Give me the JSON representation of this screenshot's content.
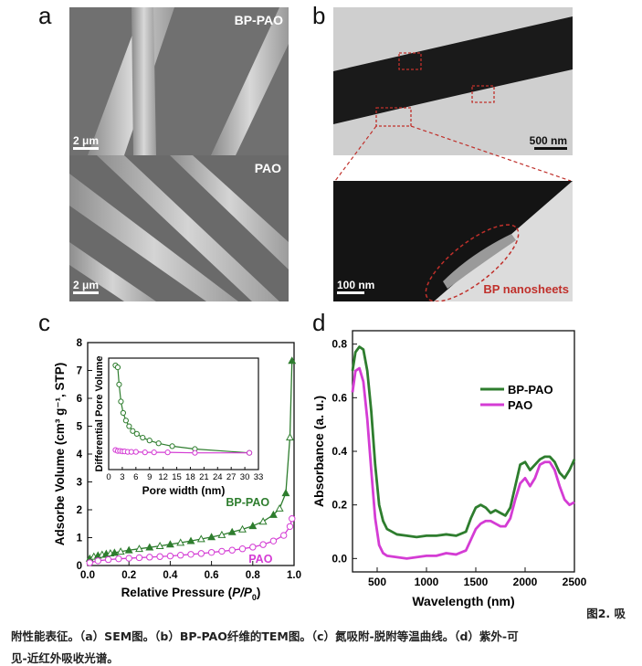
{
  "panels": {
    "a": {
      "letter": "a",
      "top_label": "BP-PAO",
      "bottom_label": "PAO",
      "scale_top": "2 μm",
      "scale_bottom": "2 μm"
    },
    "b": {
      "letter": "b",
      "scale_top": "500 nm",
      "scale_bottom": "100 nm",
      "annotation": "BP nanosheets"
    },
    "c": {
      "letter": "c"
    },
    "d": {
      "letter": "d"
    }
  },
  "chart_data": [
    {
      "id": "c-main",
      "type": "line",
      "xlabel_parts": [
        "Relative Pressure (",
        "P/P",
        "0",
        ")"
      ],
      "ylabel": "Adsorbe Volume (cm³ g⁻¹, STP)",
      "xlim": [
        0,
        1
      ],
      "ylim": [
        0,
        8
      ],
      "xticks": [
        "0.0",
        "0.2",
        "0.4",
        "0.6",
        "0.8",
        "1.0"
      ],
      "yticks": [
        "0",
        "1",
        "2",
        "3",
        "4",
        "5",
        "6",
        "7",
        "8"
      ],
      "series": [
        {
          "name": "BP-PAO",
          "color": "#2e7d2e",
          "x": [
            0.01,
            0.03,
            0.05,
            0.07,
            0.09,
            0.11,
            0.13,
            0.16,
            0.2,
            0.25,
            0.3,
            0.35,
            0.4,
            0.45,
            0.5,
            0.55,
            0.6,
            0.65,
            0.7,
            0.75,
            0.8,
            0.85,
            0.9,
            0.93,
            0.96,
            0.98,
            0.99
          ],
          "y": [
            0.25,
            0.32,
            0.36,
            0.39,
            0.42,
            0.44,
            0.46,
            0.5,
            0.55,
            0.6,
            0.65,
            0.7,
            0.76,
            0.82,
            0.88,
            0.95,
            1.02,
            1.1,
            1.2,
            1.3,
            1.42,
            1.58,
            1.82,
            2.05,
            2.6,
            4.6,
            7.35
          ]
        },
        {
          "name": "PAO",
          "color": "#d43cd4",
          "x": [
            0.01,
            0.05,
            0.1,
            0.15,
            0.2,
            0.25,
            0.3,
            0.35,
            0.4,
            0.45,
            0.5,
            0.55,
            0.6,
            0.65,
            0.7,
            0.75,
            0.8,
            0.85,
            0.9,
            0.95,
            0.98,
            0.99
          ],
          "y": [
            0.1,
            0.17,
            0.21,
            0.24,
            0.26,
            0.28,
            0.3,
            0.32,
            0.34,
            0.37,
            0.4,
            0.43,
            0.47,
            0.51,
            0.55,
            0.6,
            0.66,
            0.75,
            0.88,
            1.08,
            1.4,
            1.68
          ]
        }
      ],
      "legend_labels": [
        "BP-PAO",
        "PAO"
      ]
    },
    {
      "id": "c-inset",
      "type": "line",
      "xlabel": "Pore width (nm)",
      "ylabel": "Differential Pore Volume",
      "xlim": [
        0,
        33
      ],
      "xticks": [
        "0",
        "3",
        "6",
        "9",
        "12",
        "15",
        "18",
        "21",
        "24",
        "27",
        "30",
        "33"
      ],
      "series": [
        {
          "name": "BP-PAO",
          "color": "#2e7d2e",
          "x": [
            1.5,
            2,
            2.3,
            2.7,
            3.2,
            3.8,
            4.5,
            5.3,
            6.2,
            7.5,
            9,
            11,
            14,
            19,
            31
          ],
          "y": [
            1.0,
            0.98,
            0.8,
            0.62,
            0.5,
            0.42,
            0.36,
            0.31,
            0.28,
            0.24,
            0.21,
            0.18,
            0.15,
            0.12,
            0.08
          ]
        },
        {
          "name": "PAO",
          "color": "#d43cd4",
          "x": [
            1.5,
            2,
            2.5,
            3,
            3.5,
            4.2,
            5,
            6,
            8,
            10,
            13,
            19,
            31
          ],
          "y": [
            0.11,
            0.1,
            0.1,
            0.095,
            0.095,
            0.09,
            0.09,
            0.09,
            0.085,
            0.085,
            0.085,
            0.08,
            0.08
          ]
        }
      ]
    },
    {
      "id": "d-main",
      "type": "line",
      "xlabel": "Wavelength (nm)",
      "ylabel": "Absorbance (a. u.)",
      "xlim": [
        250,
        2500
      ],
      "ylim": [
        -0.05,
        0.85
      ],
      "xticks": [
        "500",
        "1000",
        "1500",
        "2000",
        "2500"
      ],
      "yticks": [
        "0.0",
        "0.2",
        "0.4",
        "0.6",
        "0.8"
      ],
      "series": [
        {
          "name": "BP-PAO",
          "color": "#2e7d2e",
          "x": [
            250,
            280,
            320,
            360,
            400,
            440,
            480,
            520,
            560,
            600,
            700,
            800,
            900,
            1000,
            1100,
            1200,
            1300,
            1400,
            1450,
            1500,
            1550,
            1600,
            1650,
            1700,
            1750,
            1800,
            1850,
            1900,
            1950,
            2000,
            2050,
            2100,
            2150,
            2200,
            2250,
            2300,
            2350,
            2400,
            2450,
            2500
          ],
          "y": [
            0.7,
            0.77,
            0.79,
            0.78,
            0.7,
            0.55,
            0.35,
            0.2,
            0.14,
            0.11,
            0.09,
            0.085,
            0.08,
            0.085,
            0.085,
            0.09,
            0.085,
            0.1,
            0.15,
            0.19,
            0.2,
            0.19,
            0.17,
            0.18,
            0.17,
            0.16,
            0.19,
            0.27,
            0.35,
            0.36,
            0.33,
            0.35,
            0.37,
            0.38,
            0.38,
            0.36,
            0.32,
            0.3,
            0.33,
            0.37
          ]
        },
        {
          "name": "PAO",
          "color": "#d43cd4",
          "x": [
            250,
            280,
            320,
            360,
            400,
            440,
            480,
            520,
            560,
            600,
            700,
            800,
            900,
            1000,
            1100,
            1200,
            1300,
            1400,
            1450,
            1500,
            1550,
            1600,
            1650,
            1700,
            1750,
            1800,
            1850,
            1900,
            1950,
            2000,
            2050,
            2100,
            2150,
            2200,
            2250,
            2300,
            2350,
            2400,
            2450,
            2500
          ],
          "y": [
            0.62,
            0.7,
            0.71,
            0.66,
            0.52,
            0.33,
            0.15,
            0.05,
            0.02,
            0.01,
            0.005,
            0.0,
            0.005,
            0.01,
            0.01,
            0.02,
            0.015,
            0.03,
            0.07,
            0.11,
            0.13,
            0.14,
            0.14,
            0.13,
            0.12,
            0.12,
            0.15,
            0.22,
            0.28,
            0.3,
            0.27,
            0.3,
            0.35,
            0.36,
            0.36,
            0.33,
            0.27,
            0.22,
            0.2,
            0.21
          ]
        }
      ],
      "legend_labels": [
        "BP-PAO",
        "PAO"
      ]
    }
  ],
  "caption": {
    "line1": "图2. 吸",
    "line2": "附性能表征。（a）SEM图。（b）BP-PAO纤维的TEM图。（c）氮吸附-脱附等温曲线。（d）紫外-可",
    "line3": "见-近红外吸收光谱。"
  }
}
